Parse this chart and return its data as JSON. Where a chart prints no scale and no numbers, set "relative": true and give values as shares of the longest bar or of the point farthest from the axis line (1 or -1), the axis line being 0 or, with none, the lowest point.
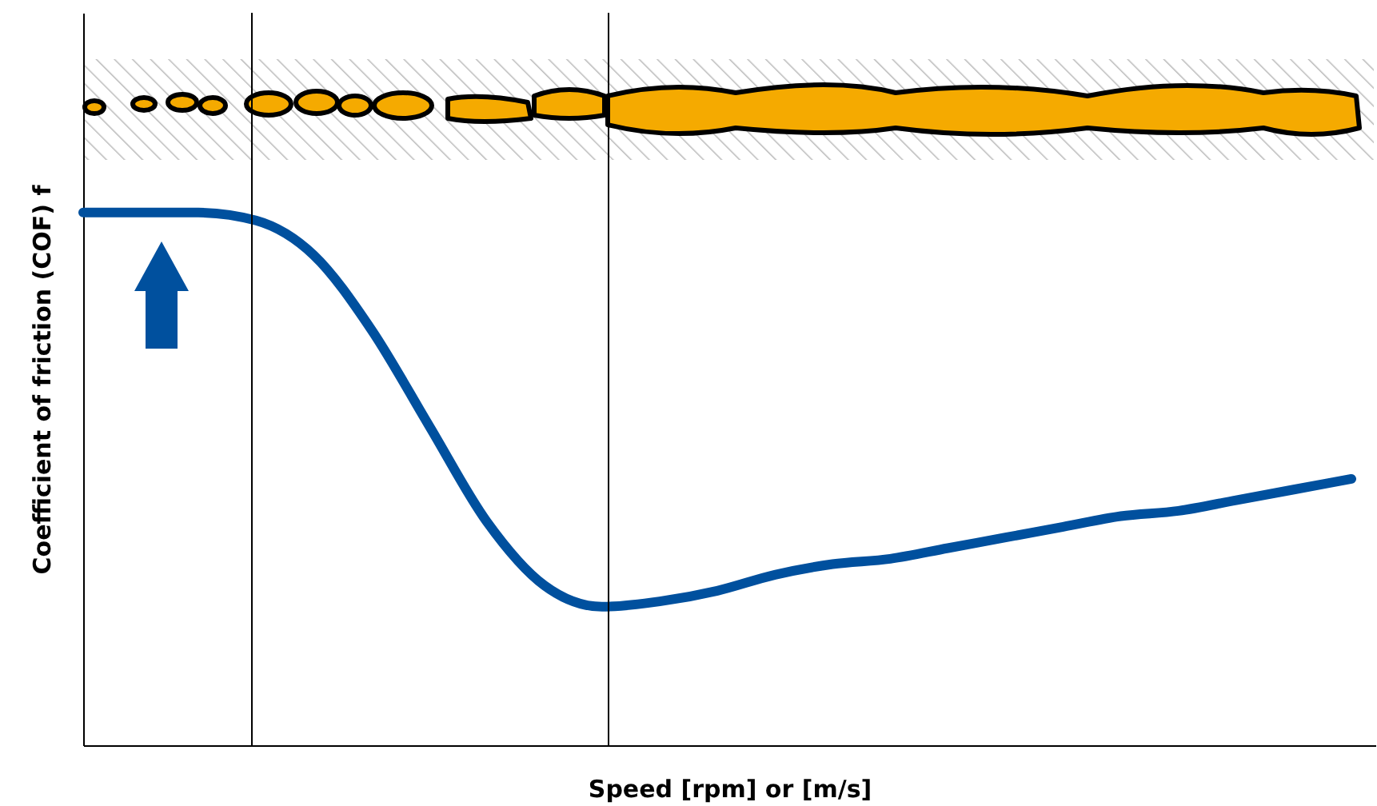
{
  "chart_data": {
    "type": "line",
    "relative": true,
    "xlabel": "Speed [rpm] or [m/s]",
    "ylabel": "Coefficient of friction (COF) f",
    "categories": [
      null,
      null,
      null,
      null,
      null,
      null,
      null,
      null,
      null,
      null,
      null,
      null,
      null,
      null,
      null,
      null,
      null,
      null,
      null,
      null,
      null,
      null,
      null
    ],
    "series": [
      {
        "color": "#00509e",
        "values": [
          1.0,
          1.0,
          1.0,
          0.985,
          0.92,
          0.78,
          0.6,
          0.42,
          0.3,
          0.26,
          0.27,
          0.29,
          0.32,
          0.34,
          0.35,
          0.37,
          0.39,
          0.41,
          0.43,
          0.44,
          0.46,
          0.48,
          0.5
        ]
      }
    ],
    "grid": false,
    "marker": "none",
    "line_style": "solid"
  }
}
